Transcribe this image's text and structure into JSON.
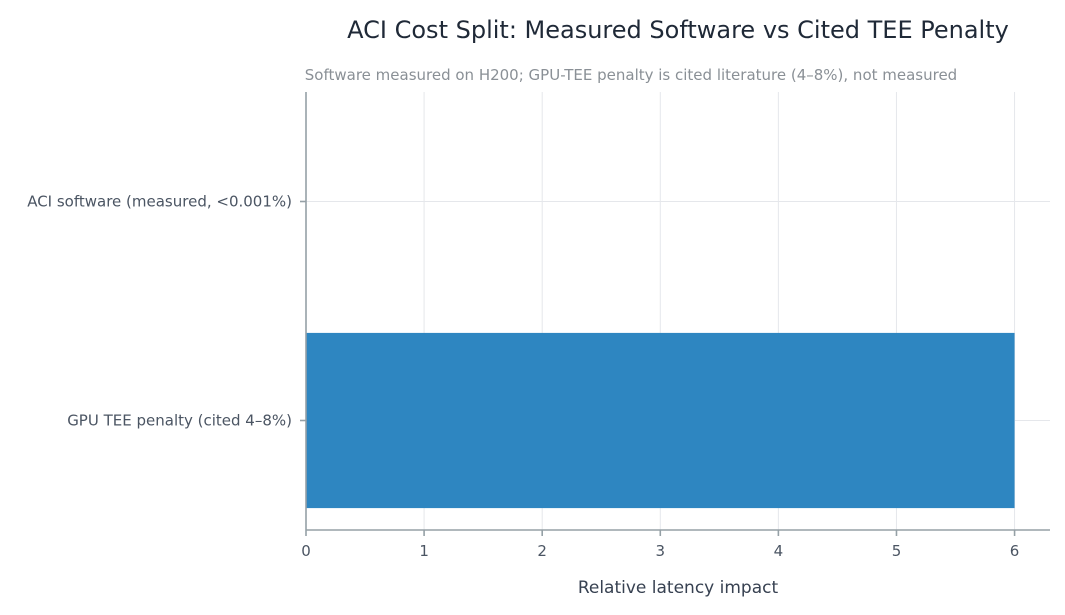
{
  "chart_data": {
    "type": "bar",
    "orientation": "horizontal",
    "title": "ACI Cost Split: Measured Software vs Cited TEE Penalty",
    "subtitle": "Software measured on H200; GPU-TEE penalty is cited literature (4–8%), not measured",
    "xlabel": "Relative latency impact",
    "ylabel": "",
    "categories": [
      "ACI software (measured, <0.001%)",
      "GPU TEE penalty (cited 4–8%)"
    ],
    "values": [
      1e-05,
      6
    ],
    "xlim": [
      0,
      6.3
    ],
    "xticks": [
      0,
      1,
      2,
      3,
      4,
      5,
      6
    ],
    "grid": true,
    "bar_color": "#2e86c1"
  }
}
